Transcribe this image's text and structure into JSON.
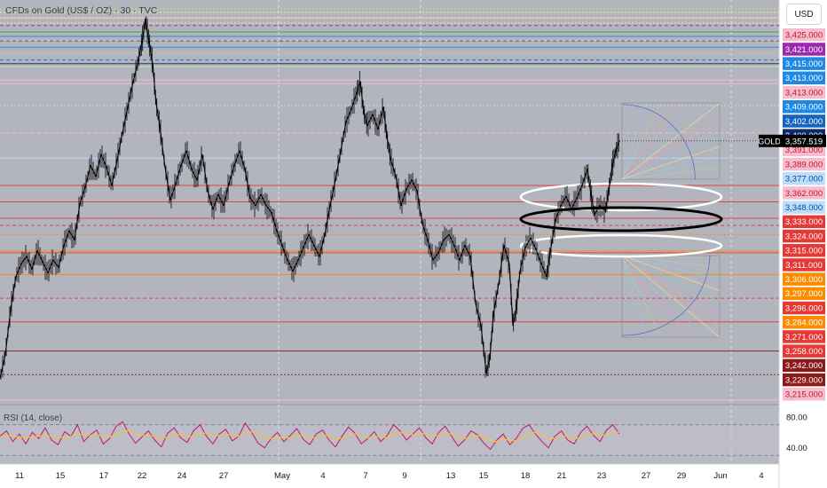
{
  "header": {
    "title": "CFDs on Gold (US$ / OZ) · 30 · TVC",
    "currency_button": "USD",
    "rsi_label": "RSI (14, close)"
  },
  "chart_data": {
    "type": "line",
    "title": "CFDs on Gold (US$ / OZ) · 30 · TVC",
    "symbol": "GOLD",
    "currency": "USD",
    "ylim": [
      3213,
      3435
    ],
    "grid": false,
    "last_price": {
      "label": "GOLD",
      "value": 3357.519
    },
    "price_levels": [
      {
        "value": 3425.0,
        "color": "#f8bbd0",
        "text_color": "#b71c1c"
      },
      {
        "value": 3421.0,
        "color": "#9c27b0",
        "text_color": "#ffffff"
      },
      {
        "value": 3415.0,
        "color": "#1e88e5",
        "text_color": "#ffffff"
      },
      {
        "value": 3413.0,
        "color": "#1e88e5",
        "text_color": "#ffffff"
      },
      {
        "value": 3413.0,
        "color": "#f8bbd0",
        "text_color": "#b71c1c"
      },
      {
        "value": 3409.0,
        "color": "#1e88e5",
        "text_color": "#ffffff"
      },
      {
        "value": 3402.0,
        "color": "#1565c0",
        "text_color": "#ffffff"
      },
      {
        "value": 3400.0,
        "color": "#0d2a6e",
        "text_color": "#ffffff"
      },
      {
        "value": 3391.0,
        "color": "#f8bbd0",
        "text_color": "#b71c1c"
      },
      {
        "value": 3389.0,
        "color": "#f8bbd0",
        "text_color": "#b71c1c"
      },
      {
        "value": 3377.0,
        "color": "#bbdefb",
        "text_color": "#0d47a1"
      },
      {
        "value": 3362.0,
        "color": "#f8bbd0",
        "text_color": "#b71c1c"
      },
      {
        "value": 3348.0,
        "color": "#bbdefb",
        "text_color": "#0d47a1"
      },
      {
        "value": 3333.0,
        "color": "#e53935",
        "text_color": "#ffffff"
      },
      {
        "value": 3324.0,
        "color": "#e53935",
        "text_color": "#ffffff"
      },
      {
        "value": 3315.0,
        "color": "#e53935",
        "text_color": "#ffffff"
      },
      {
        "value": 3311.0,
        "color": "#e53935",
        "text_color": "#ffffff"
      },
      {
        "value": 3306.0,
        "color": "#fb8c00",
        "text_color": "#ffffff"
      },
      {
        "value": 3297.0,
        "color": "#fb8c00",
        "text_color": "#ffffff"
      },
      {
        "value": 3296.0,
        "color": "#e53935",
        "text_color": "#ffffff"
      },
      {
        "value": 3284.0,
        "color": "#fb8c00",
        "text_color": "#ffffff"
      },
      {
        "value": 3271.0,
        "color": "#e53935",
        "text_color": "#ffffff"
      },
      {
        "value": 3258.0,
        "color": "#e53935",
        "text_color": "#ffffff"
      },
      {
        "value": 3242.0,
        "color": "#8b1a1a",
        "text_color": "#ffffff"
      },
      {
        "value": 3229.0,
        "color": "#8b1a1a",
        "text_color": "#ffffff"
      },
      {
        "value": 3215.0,
        "color": "#f8bbd0",
        "text_color": "#b71c1c"
      }
    ],
    "x_ticks": [
      "11",
      "15",
      "17",
      "22",
      "24",
      "27",
      "May",
      "4",
      "7",
      "9",
      "13",
      "15",
      "18",
      "21",
      "23",
      "27",
      "29",
      "Jun",
      "4"
    ],
    "price_path": [
      {
        "x": 0,
        "y": 3227
      },
      {
        "x": 6,
        "y": 3240
      },
      {
        "x": 12,
        "y": 3265
      },
      {
        "x": 18,
        "y": 3283
      },
      {
        "x": 24,
        "y": 3290
      },
      {
        "x": 30,
        "y": 3294
      },
      {
        "x": 36,
        "y": 3287
      },
      {
        "x": 42,
        "y": 3297
      },
      {
        "x": 48,
        "y": 3291
      },
      {
        "x": 54,
        "y": 3285
      },
      {
        "x": 60,
        "y": 3292
      },
      {
        "x": 66,
        "y": 3288
      },
      {
        "x": 72,
        "y": 3300
      },
      {
        "x": 78,
        "y": 3308
      },
      {
        "x": 84,
        "y": 3303
      },
      {
        "x": 90,
        "y": 3323
      },
      {
        "x": 96,
        "y": 3332
      },
      {
        "x": 102,
        "y": 3344
      },
      {
        "x": 108,
        "y": 3338
      },
      {
        "x": 114,
        "y": 3350
      },
      {
        "x": 120,
        "y": 3343
      },
      {
        "x": 126,
        "y": 3333
      },
      {
        "x": 132,
        "y": 3347
      },
      {
        "x": 138,
        "y": 3362
      },
      {
        "x": 144,
        "y": 3376
      },
      {
        "x": 150,
        "y": 3390
      },
      {
        "x": 156,
        "y": 3402
      },
      {
        "x": 160,
        "y": 3412
      },
      {
        "x": 164,
        "y": 3424
      },
      {
        "x": 168,
        "y": 3412
      },
      {
        "x": 172,
        "y": 3400
      },
      {
        "x": 176,
        "y": 3378
      },
      {
        "x": 180,
        "y": 3366
      },
      {
        "x": 186,
        "y": 3343
      },
      {
        "x": 192,
        "y": 3325
      },
      {
        "x": 198,
        "y": 3334
      },
      {
        "x": 204,
        "y": 3344
      },
      {
        "x": 210,
        "y": 3352
      },
      {
        "x": 216,
        "y": 3342
      },
      {
        "x": 222,
        "y": 3336
      },
      {
        "x": 228,
        "y": 3350
      },
      {
        "x": 234,
        "y": 3330
      },
      {
        "x": 240,
        "y": 3320
      },
      {
        "x": 246,
        "y": 3328
      },
      {
        "x": 252,
        "y": 3322
      },
      {
        "x": 258,
        "y": 3334
      },
      {
        "x": 264,
        "y": 3344
      },
      {
        "x": 270,
        "y": 3352
      },
      {
        "x": 276,
        "y": 3342
      },
      {
        "x": 282,
        "y": 3326
      },
      {
        "x": 288,
        "y": 3322
      },
      {
        "x": 294,
        "y": 3328
      },
      {
        "x": 300,
        "y": 3322
      },
      {
        "x": 306,
        "y": 3318
      },
      {
        "x": 312,
        "y": 3308
      },
      {
        "x": 318,
        "y": 3300
      },
      {
        "x": 324,
        "y": 3292
      },
      {
        "x": 330,
        "y": 3286
      },
      {
        "x": 336,
        "y": 3292
      },
      {
        "x": 342,
        "y": 3299
      },
      {
        "x": 348,
        "y": 3306
      },
      {
        "x": 354,
        "y": 3300
      },
      {
        "x": 360,
        "y": 3294
      },
      {
        "x": 366,
        "y": 3306
      },
      {
        "x": 372,
        "y": 3322
      },
      {
        "x": 378,
        "y": 3336
      },
      {
        "x": 384,
        "y": 3352
      },
      {
        "x": 390,
        "y": 3368
      },
      {
        "x": 396,
        "y": 3375
      },
      {
        "x": 402,
        "y": 3384
      },
      {
        "x": 406,
        "y": 3390
      },
      {
        "x": 410,
        "y": 3373
      },
      {
        "x": 414,
        "y": 3366
      },
      {
        "x": 420,
        "y": 3372
      },
      {
        "x": 426,
        "y": 3364
      },
      {
        "x": 432,
        "y": 3376
      },
      {
        "x": 436,
        "y": 3360
      },
      {
        "x": 440,
        "y": 3348
      },
      {
        "x": 446,
        "y": 3338
      },
      {
        "x": 452,
        "y": 3322
      },
      {
        "x": 458,
        "y": 3331
      },
      {
        "x": 464,
        "y": 3336
      },
      {
        "x": 470,
        "y": 3330
      },
      {
        "x": 476,
        "y": 3312
      },
      {
        "x": 482,
        "y": 3303
      },
      {
        "x": 488,
        "y": 3292
      },
      {
        "x": 494,
        "y": 3296
      },
      {
        "x": 500,
        "y": 3303
      },
      {
        "x": 506,
        "y": 3306
      },
      {
        "x": 512,
        "y": 3300
      },
      {
        "x": 518,
        "y": 3292
      },
      {
        "x": 524,
        "y": 3300
      },
      {
        "x": 530,
        "y": 3294
      },
      {
        "x": 536,
        "y": 3268
      },
      {
        "x": 542,
        "y": 3256
      },
      {
        "x": 548,
        "y": 3230
      },
      {
        "x": 552,
        "y": 3238
      },
      {
        "x": 556,
        "y": 3262
      },
      {
        "x": 562,
        "y": 3279
      },
      {
        "x": 568,
        "y": 3300
      },
      {
        "x": 574,
        "y": 3290
      },
      {
        "x": 578,
        "y": 3256
      },
      {
        "x": 582,
        "y": 3266
      },
      {
        "x": 586,
        "y": 3286
      },
      {
        "x": 592,
        "y": 3299
      },
      {
        "x": 598,
        "y": 3304
      },
      {
        "x": 604,
        "y": 3298
      },
      {
        "x": 610,
        "y": 3290
      },
      {
        "x": 616,
        "y": 3283
      },
      {
        "x": 620,
        "y": 3296
      },
      {
        "x": 626,
        "y": 3314
      },
      {
        "x": 632,
        "y": 3322
      },
      {
        "x": 638,
        "y": 3327
      },
      {
        "x": 644,
        "y": 3320
      },
      {
        "x": 650,
        "y": 3326
      },
      {
        "x": 656,
        "y": 3333
      },
      {
        "x": 662,
        "y": 3342
      },
      {
        "x": 666,
        "y": 3328
      },
      {
        "x": 670,
        "y": 3317
      },
      {
        "x": 676,
        "y": 3322
      },
      {
        "x": 682,
        "y": 3319
      },
      {
        "x": 686,
        "y": 3330
      },
      {
        "x": 690,
        "y": 3344
      },
      {
        "x": 694,
        "y": 3352
      },
      {
        "x": 698,
        "y": 3357.5
      }
    ],
    "rsi": {
      "label": "RSI (14, close)",
      "ylim": [
        20,
        95
      ],
      "ticks": [
        80,
        40
      ],
      "levels": [
        70,
        30
      ],
      "series": [
        {
          "color": "#c2185b",
          "values": [
            55,
            62,
            48,
            58,
            45,
            60,
            52,
            66,
            50,
            44,
            61,
            55,
            70,
            48,
            57,
            63,
            45,
            52,
            68,
            74,
            58,
            46,
            54,
            62,
            50,
            41,
            59,
            66,
            53,
            47,
            62,
            70,
            55,
            45,
            58,
            64,
            49,
            55,
            72,
            60,
            46,
            40,
            52,
            60,
            48,
            56,
            65,
            51,
            44,
            58,
            63,
            50,
            41,
            55,
            67,
            59,
            45,
            52,
            61,
            48,
            56,
            70,
            62,
            50,
            58,
            66,
            53,
            45,
            60,
            68,
            55,
            42,
            50,
            62,
            57,
            46,
            38,
            50,
            58,
            44,
            52,
            65,
            70,
            58,
            48,
            40,
            55,
            62,
            50,
            45,
            60,
            68,
            56,
            48,
            63,
            70,
            58
          ]
        },
        {
          "color": "#fbc02d",
          "values": [
            54,
            56,
            55,
            54,
            53,
            54,
            55,
            56,
            55,
            53,
            54,
            55,
            58,
            57,
            56,
            57,
            55,
            54,
            57,
            62,
            62,
            58,
            56,
            56,
            55,
            52,
            54,
            57,
            57,
            54,
            55,
            59,
            59,
            56,
            56,
            58,
            56,
            55,
            59,
            61,
            58,
            53,
            52,
            54,
            53,
            53,
            56,
            56,
            53,
            53,
            56,
            56,
            52,
            52,
            56,
            58,
            55,
            53,
            55,
            54,
            53,
            58,
            60,
            58,
            57,
            59,
            58,
            55,
            56,
            59,
            58,
            54,
            52,
            54,
            56,
            54,
            49,
            48,
            51,
            50,
            49,
            53,
            58,
            60,
            57,
            52,
            52,
            55,
            55,
            52,
            53,
            57,
            58,
            56,
            57,
            61,
            60
          ]
        }
      ]
    }
  }
}
